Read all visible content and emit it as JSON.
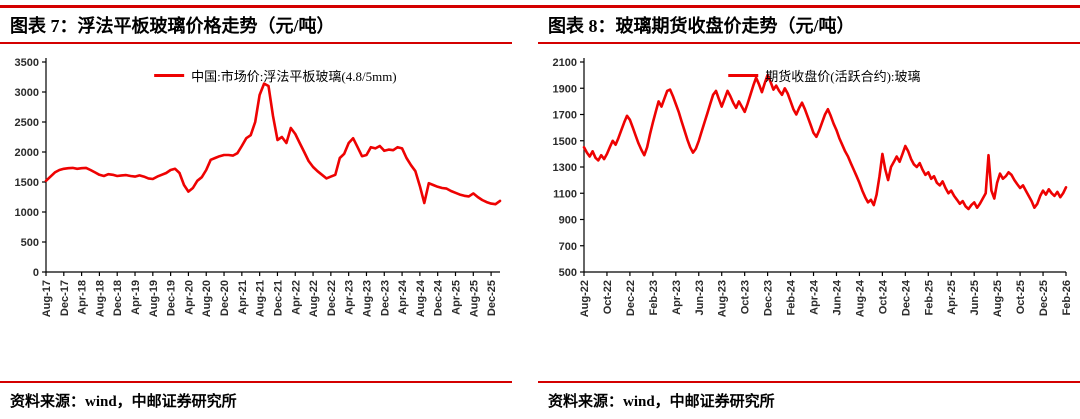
{
  "page": {
    "background": "#ffffff",
    "rule_color": "#d40000",
    "axis_color": "#000000",
    "tick_label_color": "#2b2b2b"
  },
  "figures": [
    {
      "source": "资料来源：wind，中邮证券研究所"
    },
    {
      "source": "资料来源：wind，中邮证券研究所"
    }
  ],
  "chart_data": [
    {
      "type": "line",
      "title": "图表 7：浮法平板玻璃价格走势（元/吨）",
      "legend": "中国:市场价:浮法平板玻璃(4.8/5mm)",
      "legend_position": "top-center",
      "color": "#ee0202",
      "grid": false,
      "xlabel": "",
      "ylabel": "",
      "unit": "元/吨",
      "ylim": [
        0,
        3500
      ],
      "yticks": [
        0,
        500,
        1000,
        1500,
        2000,
        2500,
        3000,
        3500
      ],
      "tick_every": 4,
      "tick_labels": [
        "Aug-17",
        "Dec-17",
        "Apr-18",
        "Aug-18",
        "Dec-18",
        "Apr-19",
        "Aug-19",
        "Dec-19",
        "Apr-20",
        "Aug-20",
        "Dec-20",
        "Apr-21",
        "Aug-21",
        "Dec-21",
        "Apr-22",
        "Aug-22",
        "Dec-22",
        "Apr-23",
        "Aug-23",
        "Dec-23",
        "Apr-24",
        "Aug-24",
        "Dec-24",
        "Apr-25",
        "Aug-25",
        "Dec-25"
      ],
      "x_start": "Aug-17",
      "x_step": "1 month",
      "values": [
        1520,
        1590,
        1660,
        1700,
        1720,
        1730,
        1735,
        1720,
        1730,
        1735,
        1700,
        1660,
        1620,
        1600,
        1630,
        1620,
        1600,
        1610,
        1615,
        1600,
        1590,
        1610,
        1590,
        1560,
        1550,
        1590,
        1620,
        1650,
        1700,
        1720,
        1650,
        1450,
        1340,
        1400,
        1520,
        1580,
        1700,
        1870,
        1900,
        1930,
        1950,
        1950,
        1940,
        1980,
        2100,
        2230,
        2280,
        2500,
        2950,
        3140,
        3100,
        2600,
        2200,
        2250,
        2150,
        2400,
        2300,
        2150,
        2000,
        1850,
        1750,
        1680,
        1620,
        1560,
        1590,
        1620,
        1900,
        1970,
        2150,
        2230,
        2080,
        1930,
        1950,
        2080,
        2060,
        2100,
        2020,
        2040,
        2030,
        2080,
        2060,
        1900,
        1780,
        1680,
        1430,
        1150,
        1480,
        1450,
        1420,
        1400,
        1390,
        1350,
        1320,
        1290,
        1270,
        1260,
        1310,
        1250,
        1200,
        1165,
        1140,
        1130,
        1185
      ]
    },
    {
      "type": "line",
      "title": "图表 8：玻璃期货收盘价走势（元/吨）",
      "legend": "期货收盘价(活跃合约):玻璃",
      "legend_position": "top-center",
      "color": "#ee0202",
      "grid": false,
      "xlabel": "",
      "ylabel": "",
      "unit": "元/吨",
      "ylim": [
        500,
        2100
      ],
      "yticks": [
        500,
        700,
        900,
        1100,
        1300,
        1500,
        1700,
        1900,
        2100
      ],
      "tick_every": 8,
      "tick_labels": [
        "Aug-22",
        "Oct-22",
        "Dec-22",
        "Feb-23",
        "Apr-23",
        "Jun-23",
        "Aug-23",
        "Oct-23",
        "Dec-23",
        "Feb-24",
        "Apr-24",
        "Jun-24",
        "Aug-24",
        "Oct-24",
        "Dec-24",
        "Feb-25",
        "Apr-25",
        "Jun-25",
        "Aug-25",
        "Oct-25",
        "Dec-25",
        "Feb-26"
      ],
      "x_start": "Aug-22",
      "x_step": "1 week (approx, 4 points per month)",
      "values": [
        1450,
        1410,
        1380,
        1420,
        1370,
        1350,
        1390,
        1360,
        1400,
        1450,
        1500,
        1470,
        1520,
        1580,
        1640,
        1690,
        1660,
        1600,
        1540,
        1480,
        1430,
        1390,
        1450,
        1550,
        1640,
        1720,
        1800,
        1760,
        1820,
        1880,
        1890,
        1840,
        1780,
        1720,
        1650,
        1580,
        1510,
        1450,
        1410,
        1440,
        1500,
        1570,
        1640,
        1710,
        1780,
        1850,
        1880,
        1820,
        1760,
        1820,
        1880,
        1840,
        1790,
        1750,
        1800,
        1760,
        1720,
        1780,
        1850,
        1920,
        1980,
        1930,
        1870,
        1940,
        2000,
        1950,
        1890,
        1920,
        1880,
        1850,
        1900,
        1860,
        1800,
        1740,
        1700,
        1750,
        1790,
        1740,
        1680,
        1620,
        1560,
        1530,
        1580,
        1640,
        1700,
        1740,
        1690,
        1630,
        1580,
        1520,
        1470,
        1420,
        1380,
        1330,
        1280,
        1230,
        1180,
        1120,
        1070,
        1030,
        1050,
        1010,
        1090,
        1230,
        1400,
        1280,
        1200,
        1300,
        1340,
        1380,
        1340,
        1400,
        1460,
        1420,
        1360,
        1320,
        1300,
        1330,
        1280,
        1240,
        1260,
        1210,
        1230,
        1180,
        1160,
        1190,
        1140,
        1100,
        1120,
        1080,
        1050,
        1020,
        1040,
        1000,
        980,
        1010,
        1030,
        990,
        1020,
        1060,
        1100,
        1390,
        1120,
        1060,
        1180,
        1250,
        1210,
        1230,
        1260,
        1240,
        1200,
        1170,
        1140,
        1160,
        1120,
        1080,
        1040,
        990,
        1020,
        1080,
        1120,
        1090,
        1130,
        1100,
        1080,
        1110,
        1070,
        1100,
        1145
      ]
    }
  ]
}
